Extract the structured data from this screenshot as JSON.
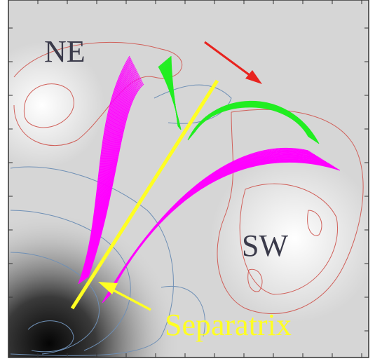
{
  "labels": {
    "ne": "NE",
    "sw": "SW",
    "separatrix": "Separatrix"
  }
}
